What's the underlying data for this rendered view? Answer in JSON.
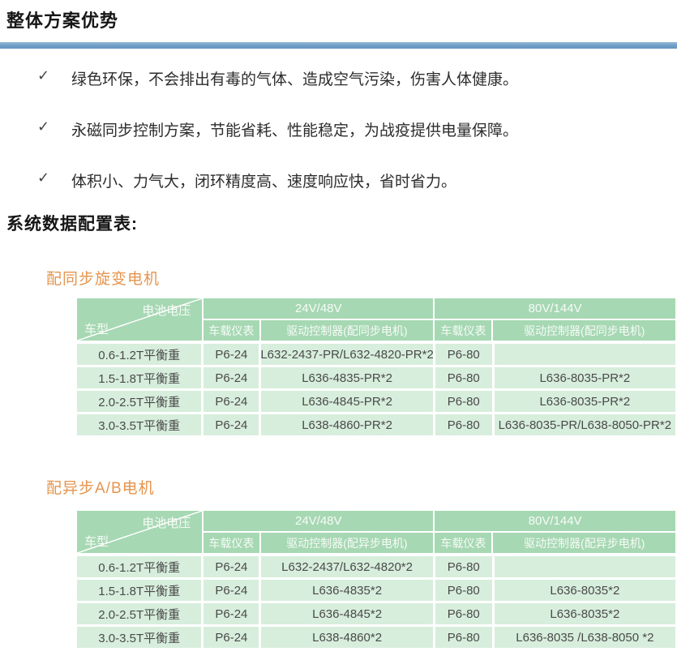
{
  "page": {
    "title": "整体方案优势",
    "section_heading": "系统数据配置表:"
  },
  "advantages": {
    "bullet_glyph": "✓",
    "items": [
      "绿色环保，不会排出有毒的气体、造成空气污染，伤害人体健康。",
      "永磁同步控制方案，节能省耗、性能稳定，为战疫提供电量保障。",
      "体积小、力气大，闭环精度高、速度响应快，省时省力。"
    ]
  },
  "colors": {
    "accent_blue": "#6e9dc6",
    "table_header_green": "#a7d8b4",
    "table_row_green": "#d8eedc",
    "table_title_orange": "#e6954e"
  },
  "tables": [
    {
      "title": "配同步旋变电机",
      "corner": {
        "top_label": "电池电压",
        "bottom_label": "车型"
      },
      "voltage_groups": [
        "24V/48V",
        "80V/144V"
      ],
      "sub_headers": [
        "车载仪表",
        "驱动控制器(配同步电机)",
        "车载仪表",
        "驱动控制器(配同步电机)"
      ],
      "rows": [
        [
          "0.6-1.2T平衡重",
          "P6-24",
          "L632-2437-PR/L632-4820-PR*2",
          "P6-80",
          ""
        ],
        [
          "1.5-1.8T平衡重",
          "P6-24",
          "L636-4835-PR*2",
          "P6-80",
          "L636-8035-PR*2"
        ],
        [
          "2.0-2.5T平衡重",
          "P6-24",
          "L636-4845-PR*2",
          "P6-80",
          "L636-8035-PR*2"
        ],
        [
          "3.0-3.5T平衡重",
          "P6-24",
          "L638-4860-PR*2",
          "P6-80",
          "L636-8035-PR/L638-8050-PR*2"
        ]
      ]
    },
    {
      "title": "配异步A/B电机",
      "corner": {
        "top_label": "电池电压",
        "bottom_label": "车型"
      },
      "voltage_groups": [
        "24V/48V",
        "80V/144V"
      ],
      "sub_headers": [
        "车载仪表",
        "驱动控制器(配异步电机)",
        "车载仪表",
        "驱动控制器(配异步电机)"
      ],
      "rows": [
        [
          "0.6-1.2T平衡重",
          "P6-24",
          "L632-2437/L632-4820*2",
          "P6-80",
          ""
        ],
        [
          "1.5-1.8T平衡重",
          "P6-24",
          "L636-4835*2",
          "P6-80",
          "L636-8035*2"
        ],
        [
          "2.0-2.5T平衡重",
          "P6-24",
          "L636-4845*2",
          "P6-80",
          "L636-8035*2"
        ],
        [
          "3.0-3.5T平衡重",
          "P6-24",
          "L638-4860*2",
          "P6-80",
          "L636-8035 /L638-8050 *2"
        ]
      ]
    }
  ]
}
